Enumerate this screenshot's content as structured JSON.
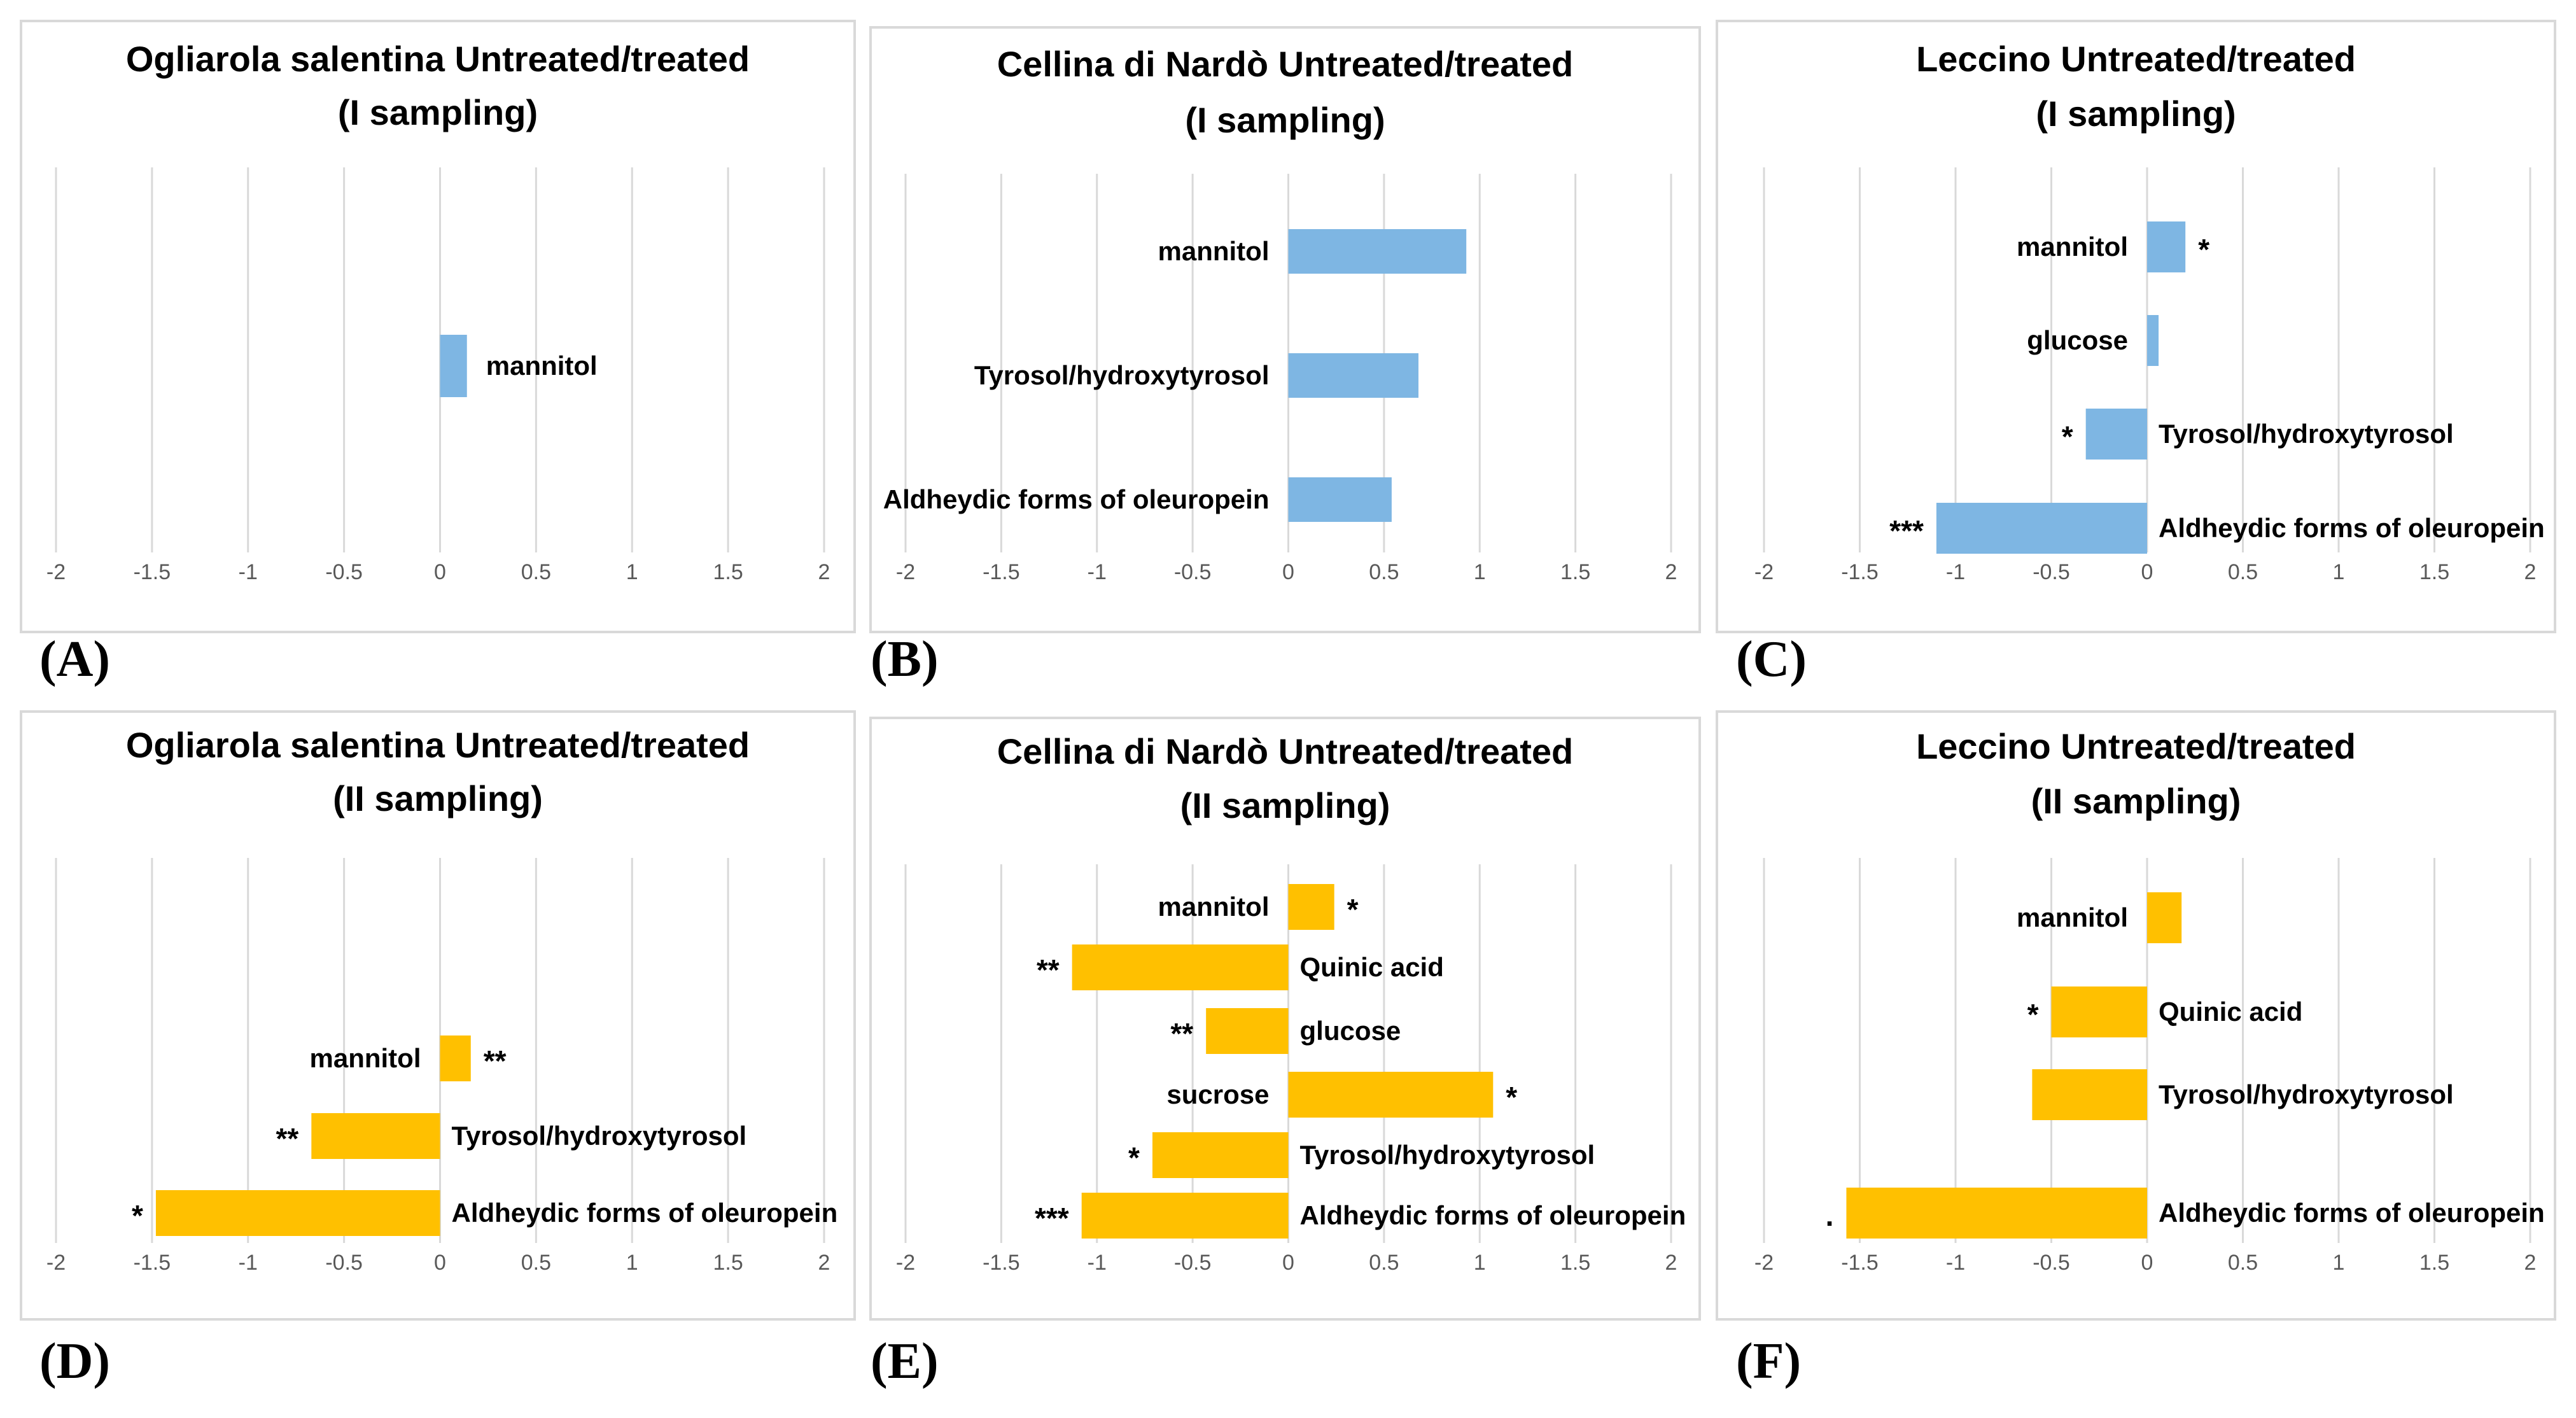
{
  "colors": {
    "first_sampling": "#7EB6E3",
    "second_sampling": "#FFC000",
    "gridline": "#D9D9D9",
    "frame": "#D9D9D9",
    "text": "#000000",
    "tick_text": "#595959"
  },
  "chart_data": [
    {
      "panel_label": "(A)",
      "type": "bar",
      "orientation": "horizontal",
      "title_line1": "Ogliarola salentina Untreated/treated",
      "title_line2": "(I sampling)",
      "xlim": [
        -2,
        2
      ],
      "ticks": [
        "-2",
        "-1.5",
        "-1",
        "-0.5",
        "0",
        "0.5",
        "1",
        "1.5",
        "2"
      ],
      "grid": true,
      "series_color": "first_sampling",
      "bars": [
        {
          "label": "mannitol",
          "value": 0.14,
          "significance": ""
        }
      ]
    },
    {
      "panel_label": "(B)",
      "type": "bar",
      "orientation": "horizontal",
      "title_line1": "Cellina di Nardò Untreated/treated",
      "title_line2": "(I sampling)",
      "xlim": [
        -2,
        2
      ],
      "ticks": [
        "-2",
        "-1.5",
        "-1",
        "-0.5",
        "0",
        "0.5",
        "1",
        "1.5",
        "2"
      ],
      "grid": true,
      "series_color": "first_sampling",
      "bars": [
        {
          "label": "mannitol",
          "value": 0.93,
          "significance": ""
        },
        {
          "label": "Tyrosol/hydroxytyrosol",
          "value": 0.68,
          "significance": ""
        },
        {
          "label": "Aldheydic forms of oleuropein",
          "value": 0.54,
          "significance": ""
        }
      ]
    },
    {
      "panel_label": "(C)",
      "type": "bar",
      "orientation": "horizontal",
      "title_line1": "Leccino Untreated/treated",
      "title_line2": "(I sampling)",
      "xlim": [
        -2,
        2
      ],
      "ticks": [
        "-2",
        "-1.5",
        "-1",
        "-0.5",
        "0",
        "0.5",
        "1",
        "1.5",
        "2"
      ],
      "grid": true,
      "series_color": "first_sampling",
      "bars": [
        {
          "label": "mannitol",
          "value": 0.2,
          "significance": "*"
        },
        {
          "label": "glucose",
          "value": 0.06,
          "significance": ""
        },
        {
          "label": "Tyrosol/hydroxytyrosol",
          "value": -0.32,
          "significance": "*"
        },
        {
          "label": "Aldheydic forms of oleuropein",
          "value": -1.1,
          "significance": "***"
        }
      ]
    },
    {
      "panel_label": "(D)",
      "type": "bar",
      "orientation": "horizontal",
      "title_line1": "Ogliarola salentina Untreated/treated",
      "title_line2": "(II sampling)",
      "xlim": [
        -2,
        2
      ],
      "ticks": [
        "-2",
        "-1.5",
        "-1",
        "-0.5",
        "0",
        "0.5",
        "1",
        "1.5",
        "2"
      ],
      "grid": true,
      "series_color": "second_sampling",
      "bars": [
        {
          "label": "mannitol",
          "value": 0.16,
          "significance": "**"
        },
        {
          "label": "Tyrosol/hydroxytyrosol",
          "value": -0.67,
          "significance": "**"
        },
        {
          "label": "Aldheydic forms of oleuropein",
          "value": -1.48,
          "significance": "*"
        }
      ]
    },
    {
      "panel_label": "(E)",
      "type": "bar",
      "orientation": "horizontal",
      "title_line1": "Cellina di Nardò Untreated/treated",
      "title_line2": "(II sampling)",
      "xlim": [
        -2,
        2
      ],
      "ticks": [
        "-2",
        "-1.5",
        "-1",
        "-0.5",
        "0",
        "0.5",
        "1",
        "1.5",
        "2"
      ],
      "grid": true,
      "series_color": "second_sampling",
      "bars": [
        {
          "label": "mannitol",
          "value": 0.24,
          "significance": "*"
        },
        {
          "label": "Quinic acid",
          "value": -1.13,
          "significance": "**"
        },
        {
          "label": "glucose",
          "value": -0.43,
          "significance": "**"
        },
        {
          "label": "sucrose",
          "value": 1.07,
          "significance": "*"
        },
        {
          "label": "Tyrosol/hydroxytyrosol",
          "value": -0.71,
          "significance": "*"
        },
        {
          "label": "Aldheydic forms of oleuropein",
          "value": -1.08,
          "significance": "***"
        }
      ]
    },
    {
      "panel_label": "(F)",
      "type": "bar",
      "orientation": "horizontal",
      "title_line1": "Leccino Untreated/treated",
      "title_line2": "(II sampling)",
      "xlim": [
        -2,
        2
      ],
      "ticks": [
        "-2",
        "-1.5",
        "-1",
        "-0.5",
        "0",
        "0.5",
        "1",
        "1.5",
        "2"
      ],
      "grid": true,
      "series_color": "second_sampling",
      "bars": [
        {
          "label": "mannitol",
          "value": 0.18,
          "significance": ""
        },
        {
          "label": "Quinic acid",
          "value": -0.5,
          "significance": "*"
        },
        {
          "label": "Tyrosol/hydroxytyrosol",
          "value": -0.6,
          "significance": ""
        },
        {
          "label": "Aldheydic forms of oleuropein",
          "value": -1.57,
          "significance": "."
        }
      ]
    }
  ]
}
